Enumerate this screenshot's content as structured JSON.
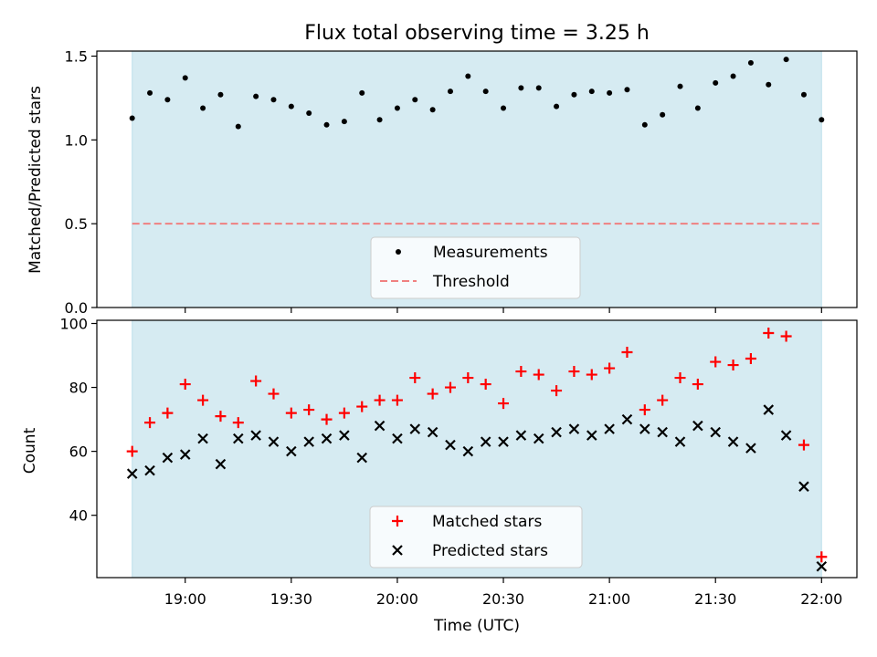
{
  "title": "Flux total observing time = 3.25 h",
  "colors": {
    "shade": "#add8e6",
    "measurement": "#000000",
    "threshold": "#f08080",
    "matched": "#ff0000",
    "predicted": "#000000"
  },
  "chart_data": [
    {
      "type": "scatter",
      "ylabel": "Matched/Predicted stars",
      "ylim": [
        0,
        1.53
      ],
      "yticks": [
        0.0,
        0.5,
        1.0,
        1.5
      ],
      "ytick_labels": [
        "0.0",
        "0.5",
        "1.0",
        "1.5"
      ],
      "observing_window": [
        "18:45",
        "22:00"
      ],
      "legend": [
        "Measurements",
        "Threshold"
      ],
      "legend_placement": "lower-center",
      "threshold": 0.5,
      "x": [
        "18:45",
        "18:50",
        "18:55",
        "19:00",
        "19:05",
        "19:10",
        "19:15",
        "19:20",
        "19:25",
        "19:30",
        "19:35",
        "19:40",
        "19:45",
        "19:50",
        "19:55",
        "20:00",
        "20:05",
        "20:10",
        "20:15",
        "20:20",
        "20:25",
        "20:30",
        "20:35",
        "20:40",
        "20:45",
        "20:50",
        "20:55",
        "21:00",
        "21:05",
        "21:10",
        "21:15",
        "21:20",
        "21:25",
        "21:30",
        "21:35",
        "21:40",
        "21:45",
        "21:50",
        "21:55",
        "22:00"
      ],
      "series": [
        {
          "name": "Measurements",
          "values": [
            1.13,
            1.28,
            1.24,
            1.37,
            1.19,
            1.27,
            1.08,
            1.26,
            1.24,
            1.2,
            1.16,
            1.09,
            1.11,
            1.28,
            1.12,
            1.19,
            1.24,
            1.18,
            1.29,
            1.38,
            1.29,
            1.19,
            1.31,
            1.31,
            1.2,
            1.27,
            1.29,
            1.28,
            1.3,
            1.09,
            1.15,
            1.32,
            1.19,
            1.34,
            1.38,
            1.46,
            1.33,
            1.48,
            1.27,
            1.12
          ]
        }
      ]
    },
    {
      "type": "scatter",
      "xlabel": "Time (UTC)",
      "ylabel": "Count",
      "ylim": [
        20.5,
        101
      ],
      "yticks": [
        40,
        60,
        80,
        100
      ],
      "ytick_labels": [
        "40",
        "60",
        "80",
        "100"
      ],
      "xticks": [
        "19:00",
        "19:30",
        "20:00",
        "20:30",
        "21:00",
        "21:30",
        "22:00"
      ],
      "observing_window": [
        "18:45",
        "22:00"
      ],
      "legend": [
        "Matched stars",
        "Predicted stars"
      ],
      "legend_placement": "lower-center",
      "x": [
        "18:45",
        "18:50",
        "18:55",
        "19:00",
        "19:05",
        "19:10",
        "19:15",
        "19:20",
        "19:25",
        "19:30",
        "19:35",
        "19:40",
        "19:45",
        "19:50",
        "19:55",
        "20:00",
        "20:05",
        "20:10",
        "20:15",
        "20:20",
        "20:25",
        "20:30",
        "20:35",
        "20:40",
        "20:45",
        "20:50",
        "20:55",
        "21:00",
        "21:05",
        "21:10",
        "21:15",
        "21:20",
        "21:25",
        "21:30",
        "21:35",
        "21:40",
        "21:45",
        "21:50",
        "21:55",
        "22:00"
      ],
      "series": [
        {
          "name": "Matched stars",
          "marker": "+",
          "values": [
            60,
            69,
            72,
            81,
            76,
            71,
            69,
            82,
            78,
            72,
            73,
            70,
            72,
            74,
            76,
            76,
            83,
            78,
            80,
            83,
            81,
            75,
            85,
            84,
            79,
            85,
            84,
            86,
            91,
            73,
            76,
            83,
            81,
            88,
            87,
            89,
            97,
            96,
            62,
            27
          ]
        },
        {
          "name": "Predicted stars",
          "marker": "x",
          "values": [
            53,
            54,
            58,
            59,
            64,
            56,
            64,
            65,
            63,
            60,
            63,
            64,
            65,
            58,
            68,
            64,
            67,
            66,
            62,
            60,
            63,
            63,
            65,
            64,
            66,
            67,
            65,
            67,
            70,
            67,
            66,
            63,
            68,
            66,
            63,
            61,
            73,
            65,
            49,
            24
          ]
        }
      ]
    }
  ]
}
